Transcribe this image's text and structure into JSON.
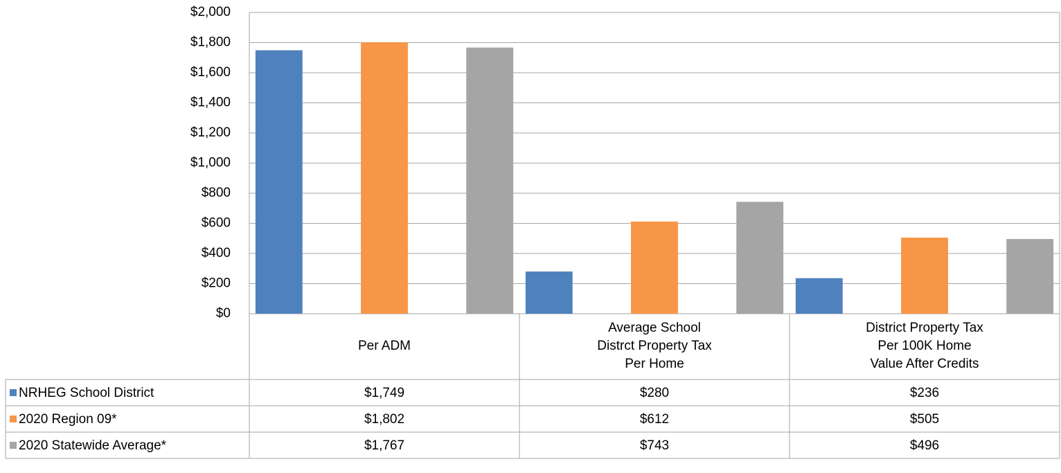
{
  "chart_data": {
    "type": "bar",
    "categories": [
      "Per ADM",
      "Average School\nDistrct Property Tax\nPer Home",
      "District Property Tax\nPer 100K Home\nValue After Credits"
    ],
    "series": [
      {
        "name": "NRHEG School District",
        "color": "#4f81bd",
        "values": [
          1749,
          280,
          236
        ],
        "value_labels": [
          "$1,749",
          "$280",
          "$236"
        ]
      },
      {
        "name": "2020 Region 09*",
        "color": "#f79646",
        "values": [
          1802,
          612,
          505
        ],
        "value_labels": [
          "$1,802",
          "$612",
          "$505"
        ]
      },
      {
        "name": "2020 Statewide Average*",
        "color": "#a5a5a5",
        "values": [
          1767,
          743,
          496
        ],
        "value_labels": [
          "$1,767",
          "$743",
          "$496"
        ]
      }
    ],
    "ylim": [
      0,
      2000
    ],
    "yticks": [
      {
        "value": 0,
        "label": "$0"
      },
      {
        "value": 200,
        "label": "$200"
      },
      {
        "value": 400,
        "label": "$400"
      },
      {
        "value": 600,
        "label": "$600"
      },
      {
        "value": 800,
        "label": "$800"
      },
      {
        "value": 1000,
        "label": "$1,000"
      },
      {
        "value": 1200,
        "label": "$1,200"
      },
      {
        "value": 1400,
        "label": "$1,400"
      },
      {
        "value": 1600,
        "label": "$1,600"
      },
      {
        "value": 1800,
        "label": "$1,800"
      },
      {
        "value": 2000,
        "label": "$2,000"
      }
    ],
    "grid": true
  }
}
